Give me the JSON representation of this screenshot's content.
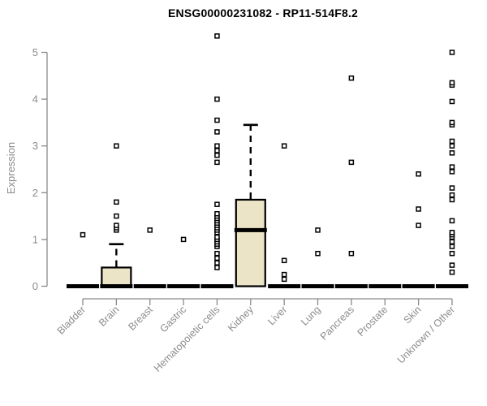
{
  "page": {
    "background": "#ffffff"
  },
  "chart_data": {
    "type": "boxplot",
    "title": "ENSG00000231082 - RP11-514F8.2",
    "ylabel": "Expression",
    "xlabel": "",
    "ylim": [
      0,
      5
    ],
    "yticks": [
      0,
      1,
      2,
      3,
      4,
      5
    ],
    "grid": false,
    "legend": "none",
    "colors": {
      "box_fill": "#ece4c7",
      "box_stroke": "#000000",
      "median": "#000000",
      "whisker": "#000000",
      "outlier_stroke": "#000000",
      "outlier_fill": "#ffffff",
      "axis_line": "#8a8a8a",
      "tick_label": "#8c8c8c",
      "title": "#000000"
    },
    "categories": [
      "Bladder",
      "Brain",
      "Breast",
      "Gastric",
      "Hematopoietic cells",
      "Kidney",
      "Liver",
      "Lung",
      "Pancreas",
      "Prostate",
      "Skin",
      "Unknown / Other"
    ],
    "series": [
      {
        "name": "Bladder",
        "q1": 0,
        "median": 0,
        "q3": 0,
        "whisker_low": 0,
        "whisker_high": 0,
        "outliers": [
          1.1
        ]
      },
      {
        "name": "Brain",
        "q1": 0,
        "median": 0,
        "q3": 0.4,
        "whisker_low": 0,
        "whisker_high": 0.9,
        "outliers": [
          1.2,
          1.25,
          1.3,
          1.5,
          1.8,
          3.0
        ]
      },
      {
        "name": "Breast",
        "q1": 0,
        "median": 0,
        "q3": 0,
        "whisker_low": 0,
        "whisker_high": 0,
        "outliers": [
          1.2
        ]
      },
      {
        "name": "Gastric",
        "q1": 0,
        "median": 0,
        "q3": 0,
        "whisker_low": 0,
        "whisker_high": 0,
        "outliers": [
          1.0
        ]
      },
      {
        "name": "Hematopoietic cells",
        "q1": 0,
        "median": 0,
        "q3": 0,
        "whisker_low": 0,
        "whisker_high": 0,
        "outliers": [
          0.4,
          0.5,
          0.6,
          0.7,
          0.85,
          0.9,
          0.95,
          1.0,
          1.05,
          1.15,
          1.2,
          1.25,
          1.3,
          1.35,
          1.4,
          1.45,
          1.5,
          1.55,
          1.75,
          2.65,
          2.8,
          2.9,
          3.0,
          3.3,
          3.55,
          4.0,
          5.35
        ]
      },
      {
        "name": "Kidney",
        "q1": 0,
        "median": 1.2,
        "q3": 1.85,
        "whisker_low": 0,
        "whisker_high": 3.45,
        "outliers": []
      },
      {
        "name": "Liver",
        "q1": 0,
        "median": 0,
        "q3": 0,
        "whisker_low": 0,
        "whisker_high": 0,
        "outliers": [
          0.15,
          0.25,
          0.55,
          3.0
        ]
      },
      {
        "name": "Lung",
        "q1": 0,
        "median": 0,
        "q3": 0,
        "whisker_low": 0,
        "whisker_high": 0,
        "outliers": [
          0.7,
          1.2
        ]
      },
      {
        "name": "Pancreas",
        "q1": 0,
        "median": 0,
        "q3": 0,
        "whisker_low": 0,
        "whisker_high": 0,
        "outliers": [
          0.7,
          2.65,
          4.45
        ]
      },
      {
        "name": "Prostate",
        "q1": 0,
        "median": 0,
        "q3": 0,
        "whisker_low": 0,
        "whisker_high": 0,
        "outliers": []
      },
      {
        "name": "Skin",
        "q1": 0,
        "median": 0,
        "q3": 0,
        "whisker_low": 0,
        "whisker_high": 0,
        "outliers": [
          1.3,
          1.65,
          2.4
        ]
      },
      {
        "name": "Unknown / Other",
        "q1": 0,
        "median": 0,
        "q3": 0,
        "whisker_low": 0,
        "whisker_high": 0,
        "outliers": [
          0.3,
          0.45,
          0.7,
          0.85,
          0.95,
          1.05,
          1.1,
          1.15,
          1.4,
          1.85,
          1.95,
          2.1,
          2.45,
          2.55,
          2.85,
          3.0,
          3.1,
          3.45,
          3.5,
          3.95,
          4.3,
          4.35,
          5.0
        ]
      }
    ]
  }
}
